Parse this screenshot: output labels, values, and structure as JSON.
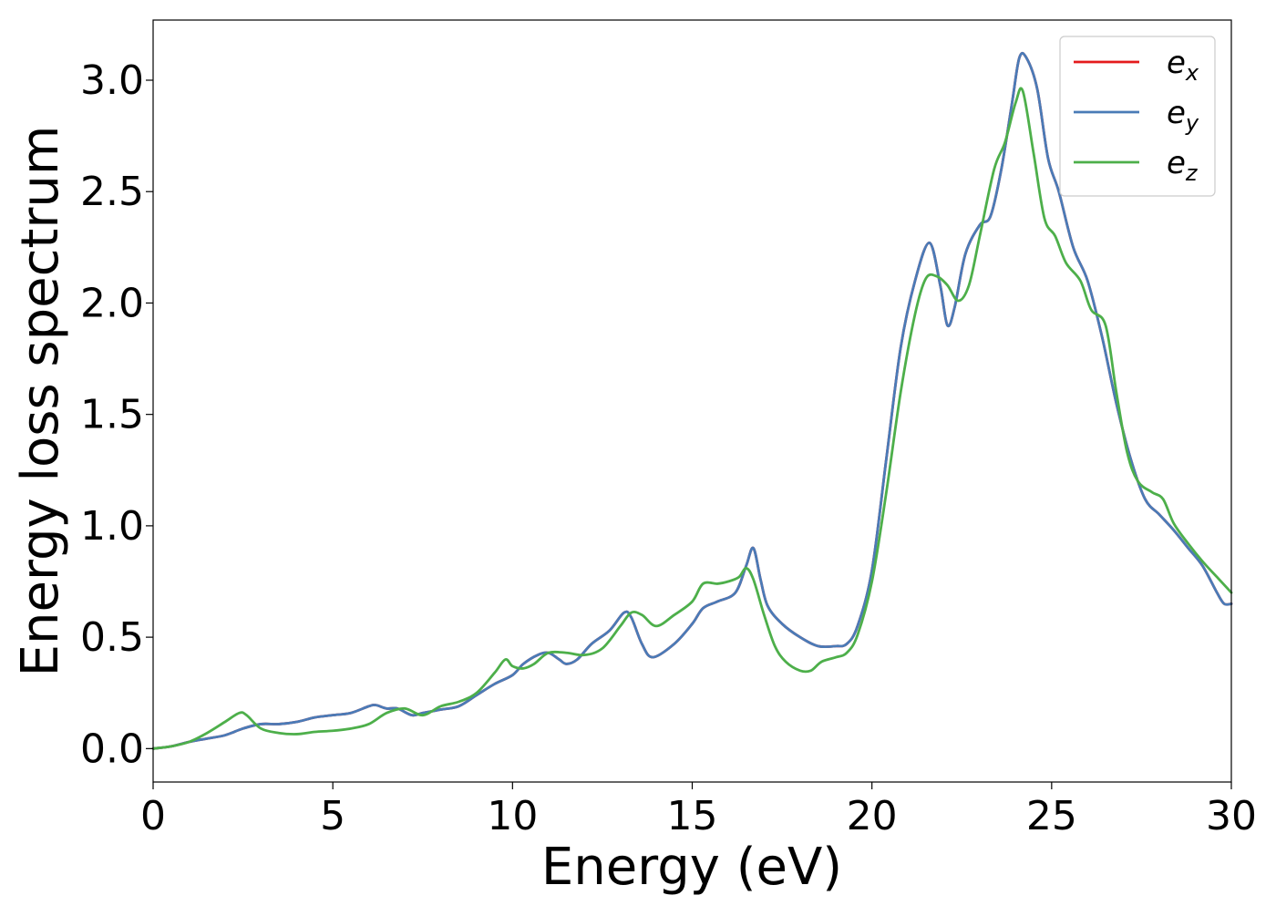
{
  "chart_data": {
    "type": "line",
    "title": "",
    "xlabel": "Energy (eV)",
    "ylabel": "Energy loss spectrum",
    "xlim": [
      0,
      30
    ],
    "ylim": [
      -0.15,
      3.27
    ],
    "xticks": [
      0,
      5,
      10,
      15,
      20,
      25,
      30
    ],
    "xtick_labels": [
      "0",
      "5",
      "10",
      "15",
      "20",
      "25",
      "30"
    ],
    "yticks": [
      0.0,
      0.5,
      1.0,
      1.5,
      2.0,
      2.5,
      3.0
    ],
    "ytick_labels": [
      "0.0",
      "0.5",
      "1.0",
      "1.5",
      "2.0",
      "2.5",
      "3.0"
    ],
    "grid": false,
    "legend_position": "top-right",
    "series": [
      {
        "name": "e",
        "sub": "x",
        "color": "#e41a1c",
        "points": [
          [
            0,
            0.0
          ],
          [
            0.5,
            0.01
          ],
          [
            1,
            0.03
          ],
          [
            1.5,
            0.045
          ],
          [
            2,
            0.06
          ],
          [
            2.5,
            0.09
          ],
          [
            3,
            0.11
          ],
          [
            3.5,
            0.11
          ],
          [
            4,
            0.12
          ],
          [
            4.5,
            0.14
          ],
          [
            5,
            0.15
          ],
          [
            5.5,
            0.16
          ],
          [
            6,
            0.19
          ],
          [
            6.2,
            0.195
          ],
          [
            6.5,
            0.18
          ],
          [
            6.8,
            0.18
          ],
          [
            7.2,
            0.15
          ],
          [
            7.5,
            0.16
          ],
          [
            8,
            0.175
          ],
          [
            8.5,
            0.19
          ],
          [
            9,
            0.24
          ],
          [
            9.5,
            0.29
          ],
          [
            10,
            0.33
          ],
          [
            10.3,
            0.38
          ],
          [
            10.7,
            0.42
          ],
          [
            11,
            0.43
          ],
          [
            11.3,
            0.4
          ],
          [
            11.5,
            0.38
          ],
          [
            11.8,
            0.4
          ],
          [
            12.2,
            0.47
          ],
          [
            12.7,
            0.53
          ],
          [
            13.1,
            0.61
          ],
          [
            13.3,
            0.59
          ],
          [
            13.6,
            0.47
          ],
          [
            13.9,
            0.41
          ],
          [
            14.5,
            0.47
          ],
          [
            15,
            0.56
          ],
          [
            15.3,
            0.63
          ],
          [
            15.7,
            0.66
          ],
          [
            16.2,
            0.7
          ],
          [
            16.5,
            0.82
          ],
          [
            16.7,
            0.9
          ],
          [
            16.9,
            0.76
          ],
          [
            17.1,
            0.64
          ],
          [
            17.5,
            0.56
          ],
          [
            18,
            0.5
          ],
          [
            18.5,
            0.46
          ],
          [
            19,
            0.46
          ],
          [
            19.3,
            0.47
          ],
          [
            19.6,
            0.55
          ],
          [
            20,
            0.8
          ],
          [
            20.4,
            1.3
          ],
          [
            20.8,
            1.8
          ],
          [
            21.2,
            2.1
          ],
          [
            21.6,
            2.27
          ],
          [
            21.9,
            2.08
          ],
          [
            22.1,
            1.9
          ],
          [
            22.3,
            1.98
          ],
          [
            22.6,
            2.22
          ],
          [
            23,
            2.35
          ],
          [
            23.3,
            2.39
          ],
          [
            23.6,
            2.6
          ],
          [
            23.9,
            2.9
          ],
          [
            24.1,
            3.1
          ],
          [
            24.3,
            3.1
          ],
          [
            24.6,
            2.96
          ],
          [
            24.9,
            2.65
          ],
          [
            25.2,
            2.5
          ],
          [
            25.6,
            2.25
          ],
          [
            26,
            2.1
          ],
          [
            26.4,
            1.85
          ],
          [
            26.8,
            1.55
          ],
          [
            27.2,
            1.3
          ],
          [
            27.6,
            1.12
          ],
          [
            28,
            1.05
          ],
          [
            28.4,
            0.98
          ],
          [
            28.8,
            0.9
          ],
          [
            29.2,
            0.82
          ],
          [
            29.6,
            0.7
          ],
          [
            29.8,
            0.65
          ],
          [
            30,
            0.65
          ]
        ]
      },
      {
        "name": "e",
        "sub": "y",
        "color": "#4a7bb7",
        "points": [
          [
            0,
            0.0
          ],
          [
            0.5,
            0.01
          ],
          [
            1,
            0.03
          ],
          [
            1.5,
            0.045
          ],
          [
            2,
            0.06
          ],
          [
            2.5,
            0.09
          ],
          [
            3,
            0.11
          ],
          [
            3.5,
            0.11
          ],
          [
            4,
            0.12
          ],
          [
            4.5,
            0.14
          ],
          [
            5,
            0.15
          ],
          [
            5.5,
            0.16
          ],
          [
            6,
            0.19
          ],
          [
            6.2,
            0.195
          ],
          [
            6.5,
            0.18
          ],
          [
            6.8,
            0.18
          ],
          [
            7.2,
            0.15
          ],
          [
            7.5,
            0.16
          ],
          [
            8,
            0.175
          ],
          [
            8.5,
            0.19
          ],
          [
            9,
            0.24
          ],
          [
            9.5,
            0.29
          ],
          [
            10,
            0.33
          ],
          [
            10.3,
            0.38
          ],
          [
            10.7,
            0.42
          ],
          [
            11,
            0.43
          ],
          [
            11.3,
            0.4
          ],
          [
            11.5,
            0.38
          ],
          [
            11.8,
            0.4
          ],
          [
            12.2,
            0.47
          ],
          [
            12.7,
            0.53
          ],
          [
            13.1,
            0.61
          ],
          [
            13.3,
            0.59
          ],
          [
            13.6,
            0.47
          ],
          [
            13.9,
            0.41
          ],
          [
            14.5,
            0.47
          ],
          [
            15,
            0.56
          ],
          [
            15.3,
            0.63
          ],
          [
            15.7,
            0.66
          ],
          [
            16.2,
            0.7
          ],
          [
            16.5,
            0.82
          ],
          [
            16.7,
            0.9
          ],
          [
            16.9,
            0.76
          ],
          [
            17.1,
            0.64
          ],
          [
            17.5,
            0.56
          ],
          [
            18,
            0.5
          ],
          [
            18.5,
            0.46
          ],
          [
            19,
            0.46
          ],
          [
            19.3,
            0.47
          ],
          [
            19.6,
            0.55
          ],
          [
            20,
            0.8
          ],
          [
            20.4,
            1.3
          ],
          [
            20.8,
            1.8
          ],
          [
            21.2,
            2.1
          ],
          [
            21.6,
            2.27
          ],
          [
            21.9,
            2.08
          ],
          [
            22.1,
            1.9
          ],
          [
            22.3,
            1.98
          ],
          [
            22.6,
            2.22
          ],
          [
            23,
            2.35
          ],
          [
            23.3,
            2.39
          ],
          [
            23.6,
            2.6
          ],
          [
            23.9,
            2.9
          ],
          [
            24.1,
            3.1
          ],
          [
            24.3,
            3.1
          ],
          [
            24.6,
            2.96
          ],
          [
            24.9,
            2.65
          ],
          [
            25.2,
            2.5
          ],
          [
            25.6,
            2.25
          ],
          [
            26,
            2.1
          ],
          [
            26.4,
            1.85
          ],
          [
            26.8,
            1.55
          ],
          [
            27.2,
            1.3
          ],
          [
            27.6,
            1.12
          ],
          [
            28,
            1.05
          ],
          [
            28.4,
            0.98
          ],
          [
            28.8,
            0.9
          ],
          [
            29.2,
            0.82
          ],
          [
            29.6,
            0.7
          ],
          [
            29.8,
            0.65
          ],
          [
            30,
            0.65
          ]
        ]
      },
      {
        "name": "e",
        "sub": "z",
        "color": "#4daf4a",
        "points": [
          [
            0,
            0.0
          ],
          [
            0.5,
            0.01
          ],
          [
            1,
            0.03
          ],
          [
            1.5,
            0.07
          ],
          [
            2,
            0.12
          ],
          [
            2.4,
            0.16
          ],
          [
            2.6,
            0.15
          ],
          [
            3,
            0.09
          ],
          [
            3.5,
            0.07
          ],
          [
            4,
            0.065
          ],
          [
            4.5,
            0.075
          ],
          [
            5,
            0.08
          ],
          [
            5.5,
            0.09
          ],
          [
            6,
            0.11
          ],
          [
            6.5,
            0.16
          ],
          [
            7,
            0.18
          ],
          [
            7.5,
            0.15
          ],
          [
            8,
            0.19
          ],
          [
            8.5,
            0.21
          ],
          [
            9,
            0.25
          ],
          [
            9.5,
            0.34
          ],
          [
            9.8,
            0.4
          ],
          [
            10,
            0.37
          ],
          [
            10.3,
            0.36
          ],
          [
            10.6,
            0.38
          ],
          [
            11,
            0.43
          ],
          [
            11.5,
            0.43
          ],
          [
            12,
            0.42
          ],
          [
            12.5,
            0.45
          ],
          [
            13,
            0.55
          ],
          [
            13.3,
            0.61
          ],
          [
            13.6,
            0.6
          ],
          [
            14,
            0.55
          ],
          [
            14.5,
            0.6
          ],
          [
            15,
            0.66
          ],
          [
            15.3,
            0.74
          ],
          [
            15.7,
            0.74
          ],
          [
            16,
            0.75
          ],
          [
            16.3,
            0.77
          ],
          [
            16.5,
            0.81
          ],
          [
            16.7,
            0.76
          ],
          [
            17,
            0.6
          ],
          [
            17.3,
            0.46
          ],
          [
            17.6,
            0.39
          ],
          [
            18,
            0.35
          ],
          [
            18.3,
            0.35
          ],
          [
            18.6,
            0.39
          ],
          [
            19,
            0.41
          ],
          [
            19.3,
            0.43
          ],
          [
            19.6,
            0.51
          ],
          [
            20,
            0.75
          ],
          [
            20.4,
            1.15
          ],
          [
            20.8,
            1.6
          ],
          [
            21.2,
            1.95
          ],
          [
            21.5,
            2.11
          ],
          [
            21.8,
            2.12
          ],
          [
            22.1,
            2.08
          ],
          [
            22.4,
            2.01
          ],
          [
            22.7,
            2.08
          ],
          [
            23,
            2.3
          ],
          [
            23.4,
            2.6
          ],
          [
            23.7,
            2.72
          ],
          [
            24,
            2.9
          ],
          [
            24.2,
            2.95
          ],
          [
            24.5,
            2.67
          ],
          [
            24.8,
            2.38
          ],
          [
            25.1,
            2.3
          ],
          [
            25.4,
            2.18
          ],
          [
            25.8,
            2.1
          ],
          [
            26.1,
            1.97
          ],
          [
            26.5,
            1.9
          ],
          [
            26.8,
            1.6
          ],
          [
            27.1,
            1.33
          ],
          [
            27.4,
            1.2
          ],
          [
            27.8,
            1.15
          ],
          [
            28.1,
            1.12
          ],
          [
            28.4,
            1.01
          ],
          [
            28.8,
            0.92
          ],
          [
            29.2,
            0.84
          ],
          [
            29.6,
            0.77
          ],
          [
            30,
            0.7
          ]
        ]
      }
    ]
  }
}
